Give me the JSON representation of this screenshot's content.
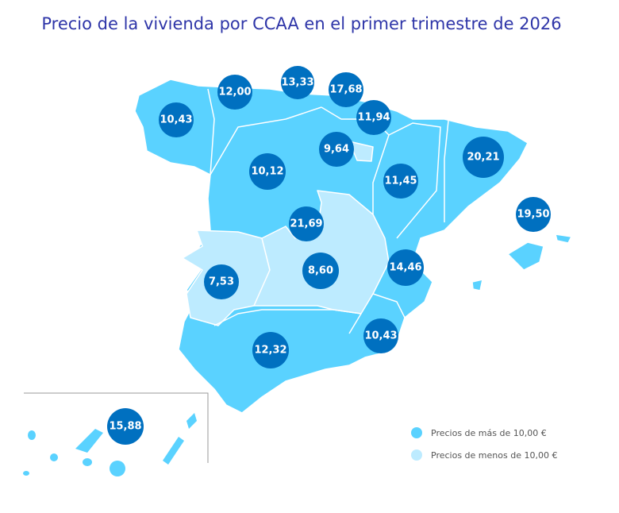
{
  "title": "Precio de la vivienda por CCAA en el primer trimestre de 2026",
  "colors": {
    "above": "#5AD2FF",
    "below": "#BDEBFF",
    "bubble": "#0070C0",
    "title": "#2E35A8"
  },
  "legend": [
    {
      "label": "Precios de más de 10,00 €",
      "color": "#5AD2FF"
    },
    {
      "label": "Precios de menos de 10,00 €",
      "color": "#BDEBFF"
    }
  ],
  "regions": [
    {
      "name": "Galicia",
      "value": "10,43",
      "category": "above"
    },
    {
      "name": "Asturias",
      "value": "12,00",
      "category": "above"
    },
    {
      "name": "Cantabria",
      "value": "13,33",
      "category": "above"
    },
    {
      "name": "País Vasco",
      "value": "17,68",
      "category": "above"
    },
    {
      "name": "Navarra",
      "value": "11,94",
      "category": "above"
    },
    {
      "name": "La Rioja",
      "value": "9,64",
      "category": "below"
    },
    {
      "name": "Castilla y León",
      "value": "10,12",
      "category": "above"
    },
    {
      "name": "Aragón",
      "value": "11,45",
      "category": "above"
    },
    {
      "name": "Cataluña",
      "value": "20,21",
      "category": "above"
    },
    {
      "name": "Baleares",
      "value": "19,50",
      "category": "above"
    },
    {
      "name": "Madrid",
      "value": "21,69",
      "category": "above"
    },
    {
      "name": "Extremadura",
      "value": "7,53",
      "category": "below"
    },
    {
      "name": "Castilla-La Mancha",
      "value": "8,60",
      "category": "below"
    },
    {
      "name": "Comunitat Valenciana",
      "value": "14,46",
      "category": "above"
    },
    {
      "name": "Murcia",
      "value": "10,43",
      "category": "above"
    },
    {
      "name": "Andalucía",
      "value": "12,32",
      "category": "above"
    },
    {
      "name": "Canarias",
      "value": "15,88",
      "category": "above"
    }
  ]
}
